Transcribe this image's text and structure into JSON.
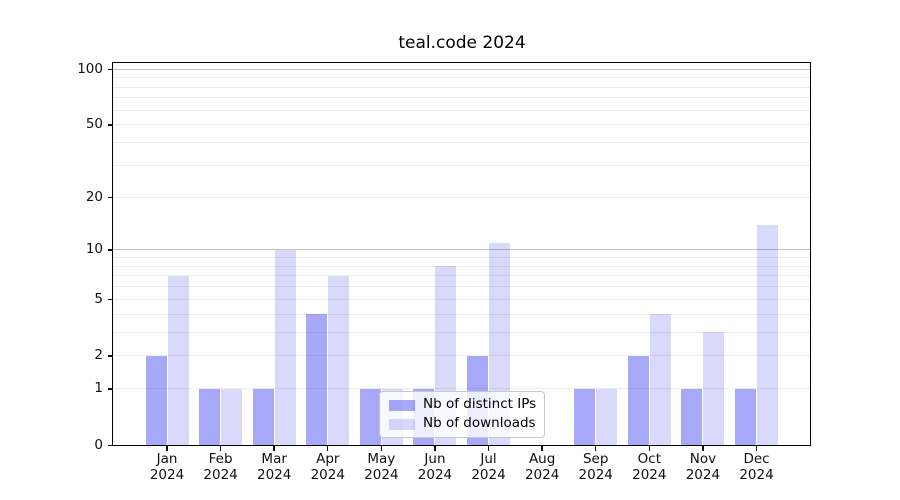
{
  "chart_data": {
    "type": "bar",
    "title": "teal.code 2024",
    "categories": [
      {
        "month": "Jan",
        "year": "2024"
      },
      {
        "month": "Feb",
        "year": "2024"
      },
      {
        "month": "Mar",
        "year": "2024"
      },
      {
        "month": "Apr",
        "year": "2024"
      },
      {
        "month": "May",
        "year": "2024"
      },
      {
        "month": "Jun",
        "year": "2024"
      },
      {
        "month": "Jul",
        "year": "2024"
      },
      {
        "month": "Aug",
        "year": "2024"
      },
      {
        "month": "Sep",
        "year": "2024"
      },
      {
        "month": "Oct",
        "year": "2024"
      },
      {
        "month": "Nov",
        "year": "2024"
      },
      {
        "month": "Dec",
        "year": "2024"
      }
    ],
    "series": [
      {
        "name": "Nb of distinct IPs",
        "color_hex_on_white": "#a8a8f7",
        "color_rgba": "rgba(0,0,235,0.34)",
        "values": [
          2,
          1,
          1,
          4,
          1,
          1,
          2,
          0,
          1,
          2,
          1,
          1
        ]
      },
      {
        "name": "Nb of downloads",
        "color_hex_on_white": "#d9d9fb",
        "color_rgba": "rgba(0,0,235,0.15)",
        "values": [
          7,
          1,
          10,
          7,
          1,
          8,
          11,
          0,
          1,
          4,
          3,
          14
        ]
      }
    ],
    "y_axis": {
      "scale": "log1p",
      "tick_labels": [
        "0",
        "1",
        "2",
        "5",
        "10",
        "20",
        "50",
        "100"
      ],
      "tick_values": [
        0,
        1,
        2,
        5,
        10,
        20,
        50,
        100
      ],
      "ylim": [
        0,
        110
      ]
    },
    "gridlines": {
      "minor_values": [
        1,
        2,
        3,
        4,
        5,
        6,
        7,
        8,
        9,
        20,
        30,
        40,
        50,
        60,
        70,
        80,
        90
      ],
      "major_values": [
        10,
        100
      ],
      "minor_color": "#ececec",
      "major_color": "#c2c2c2"
    },
    "legend": {
      "position": "lower center",
      "entries": [
        "Nb of distinct IPs",
        "Nb of downloads"
      ]
    },
    "xlabel": "",
    "ylabel": ""
  }
}
